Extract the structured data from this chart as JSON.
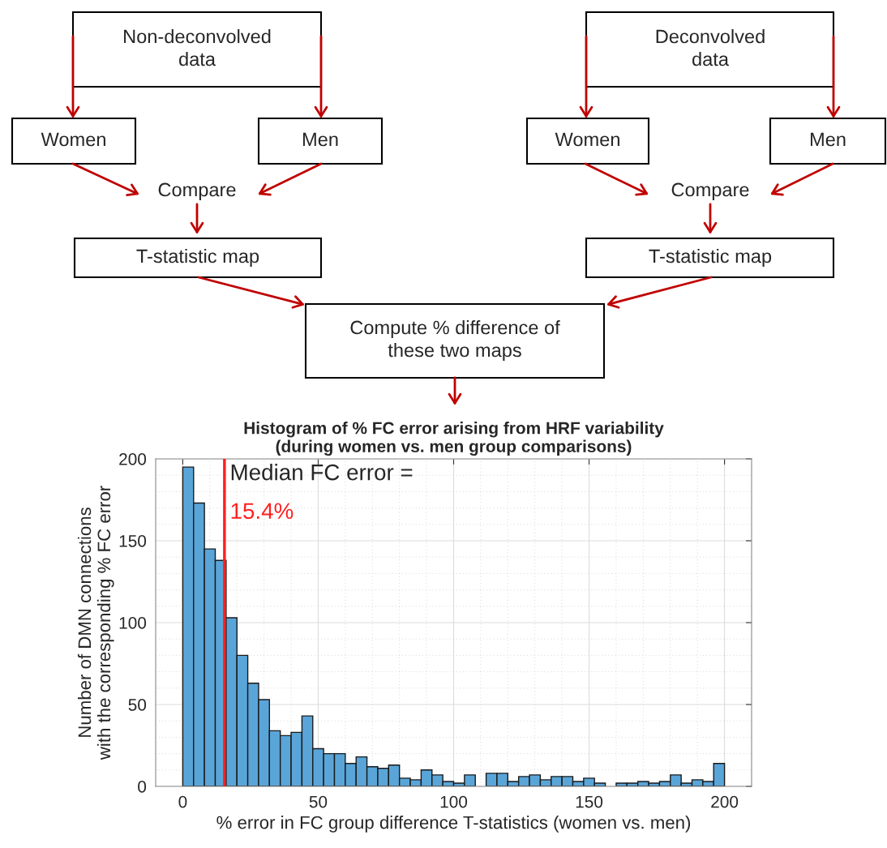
{
  "chart_data": [
    {
      "type": "other",
      "annotations": [
        "Non-deconvolved\ndata",
        "Women",
        "Men",
        "Compare",
        "T-statistic map",
        "Deconvolved\ndata",
        "Women",
        "Men",
        "Compare",
        "T-statistic map",
        "Compute % difference of\nthese two maps"
      ]
    },
    {
      "type": "histogram",
      "title": "Histogram of % FC error arising from HRF variability\n(during women vs. men group comparisons)",
      "xlabel": "% error in FC group difference T-statistics (women vs. men)",
      "ylabel": "Number of DMN connections\nwith the corresponding % FC error",
      "bins": [
        0,
        4,
        8,
        12,
        16,
        20,
        24,
        28,
        32,
        36,
        40,
        44,
        48,
        52,
        56,
        60,
        64,
        68,
        72,
        76,
        80,
        84,
        88,
        92,
        96,
        100,
        104,
        108,
        112,
        116,
        120,
        124,
        128,
        132,
        136,
        140,
        144,
        148,
        152,
        156,
        160,
        164,
        168,
        172,
        176,
        180,
        184,
        188,
        192,
        196,
        200
      ],
      "values": [
        195,
        173,
        145,
        138,
        103,
        80,
        63,
        53,
        34,
        31,
        33,
        43,
        23,
        20,
        20,
        14,
        18,
        12,
        11,
        13,
        5,
        4,
        10,
        7,
        3,
        2,
        7,
        0,
        8,
        8,
        3,
        6,
        7,
        4,
        6,
        6,
        3,
        5,
        2,
        0,
        2,
        2,
        3,
        2,
        3,
        7,
        2,
        4,
        3,
        14
      ],
      "color": "#5aa5d8",
      "xlim": [
        -10,
        210
      ],
      "xticks": [
        0,
        50,
        100,
        150,
        200
      ],
      "ylim": [
        0,
        200
      ],
      "yticks": [
        0,
        50,
        100,
        150,
        200
      ],
      "grid": true,
      "ref_lines": [
        {
          "axis": "x",
          "value": 15.4,
          "label": "Median FC error =",
          "color": "#ff2020"
        }
      ],
      "annotations": [
        {
          "text": "15.4%",
          "x": 15.4,
          "y": 167
        }
      ]
    }
  ]
}
